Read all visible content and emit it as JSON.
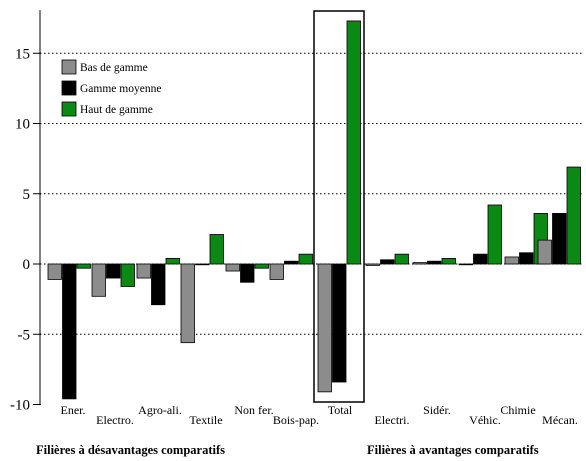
{
  "chart_data": {
    "type": "bar",
    "ylim": [
      -10,
      17.5
    ],
    "yticks": [
      -10,
      -5,
      0,
      5,
      10,
      15
    ],
    "grid": "horizontal-dotted",
    "legend_position": "top-left",
    "highlighted_category": "Total",
    "series": [
      {
        "name": "Bas de gamme",
        "color": "#8c8c8c"
      },
      {
        "name": "Gamme moyenne",
        "color": "#000000"
      },
      {
        "name": "Haut de gamme",
        "color": "#0a8a14"
      }
    ],
    "categories": [
      {
        "label": "Ener.",
        "values": [
          -1.1,
          -9.6,
          -0.3
        ]
      },
      {
        "label": "Electro.",
        "values": [
          -2.3,
          -1.0,
          -1.6
        ]
      },
      {
        "label": "Agro-ali.",
        "values": [
          -1.0,
          -2.9,
          0.4
        ]
      },
      {
        "label": "Textile",
        "values": [
          -5.6,
          0.0,
          2.1
        ]
      },
      {
        "label": "Non fer.",
        "values": [
          -0.5,
          -1.3,
          -0.3
        ]
      },
      {
        "label": "Bois-pap.",
        "values": [
          -1.1,
          0.2,
          0.7
        ]
      },
      {
        "label": "Total",
        "values": [
          -9.1,
          -8.4,
          17.3
        ]
      },
      {
        "label": "Electri.",
        "values": [
          -0.1,
          0.3,
          0.7
        ]
      },
      {
        "label": "Sidér.",
        "values": [
          0.1,
          0.2,
          0.4
        ]
      },
      {
        "label": "Véhic.",
        "values": [
          0.0,
          0.7,
          4.2
        ]
      },
      {
        "label": "Chimie",
        "values": [
          0.5,
          0.8,
          3.6
        ]
      },
      {
        "label": "Mécan.",
        "values": [
          1.7,
          3.6,
          6.9
        ]
      }
    ],
    "group_labels": [
      "Filières à désavantages comparatifs",
      "Filières à avantages comparatifs"
    ]
  }
}
